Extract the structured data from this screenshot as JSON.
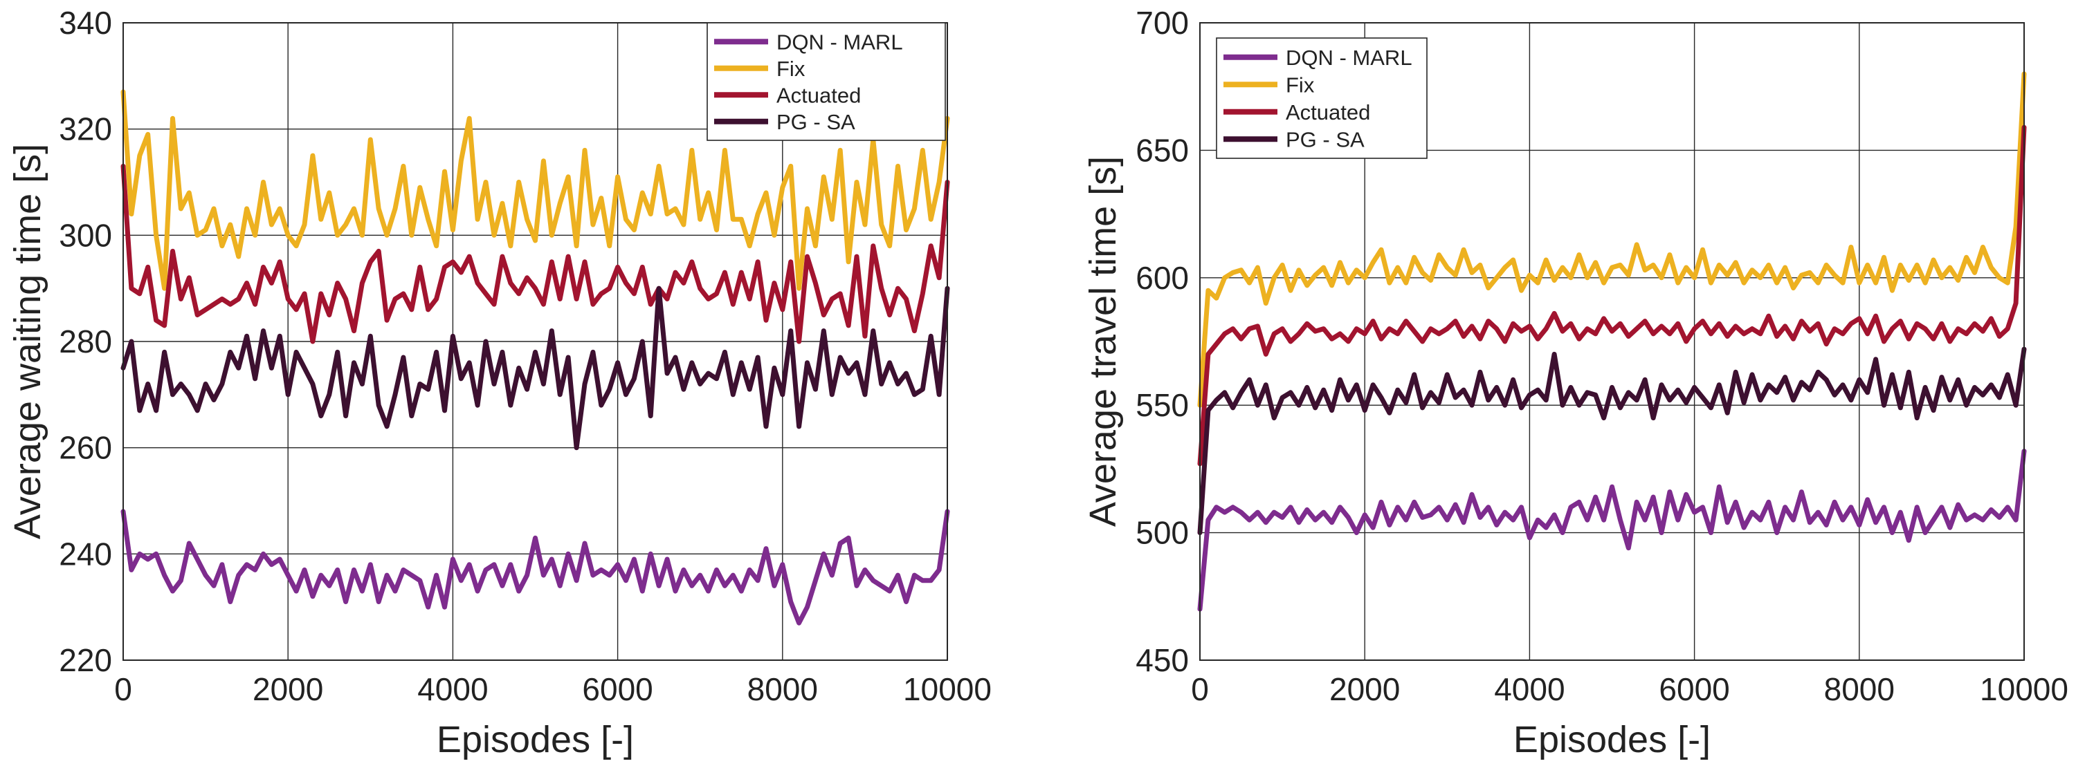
{
  "colors": {
    "dqn_marl": "#7E2C8E",
    "fix": "#EDB120",
    "actuated": "#A2142F",
    "pg_sa": "#3D1030"
  },
  "chart_data": [
    {
      "type": "line",
      "xlabel": "Episodes [-]",
      "ylabel": "Average waiting time [s]",
      "xlim": [
        0,
        10000
      ],
      "ylim": [
        220,
        340
      ],
      "xticks": [
        0,
        2000,
        4000,
        6000,
        8000,
        10000
      ],
      "yticks": [
        220,
        240,
        260,
        280,
        300,
        320,
        340
      ],
      "grid": true,
      "legend_position": "top-right",
      "x": [
        0,
        100,
        200,
        300,
        400,
        500,
        600,
        700,
        800,
        900,
        1000,
        1100,
        1200,
        1300,
        1400,
        1500,
        1600,
        1700,
        1800,
        1900,
        2000,
        2100,
        2200,
        2300,
        2400,
        2500,
        2600,
        2700,
        2800,
        2900,
        3000,
        3100,
        3200,
        3300,
        3400,
        3500,
        3600,
        3700,
        3800,
        3900,
        4000,
        4100,
        4200,
        4300,
        4400,
        4500,
        4600,
        4700,
        4800,
        4900,
        5000,
        5100,
        5200,
        5300,
        5400,
        5500,
        5600,
        5700,
        5800,
        5900,
        6000,
        6100,
        6200,
        6300,
        6400,
        6500,
        6600,
        6700,
        6800,
        6900,
        7000,
        7100,
        7200,
        7300,
        7400,
        7500,
        7600,
        7700,
        7800,
        7900,
        8000,
        8100,
        8200,
        8300,
        8400,
        8500,
        8600,
        8700,
        8800,
        8900,
        9000,
        9100,
        9200,
        9300,
        9400,
        9500,
        9600,
        9700,
        9800,
        9900,
        10000
      ],
      "series": [
        {
          "name": "DQN - MARL",
          "color_key": "dqn_marl",
          "values": [
            248,
            237,
            240,
            239,
            240,
            236,
            233,
            235,
            242,
            239,
            236,
            234,
            238,
            231,
            236,
            238,
            237,
            240,
            238,
            239,
            236,
            233,
            237,
            232,
            236,
            234,
            237,
            231,
            237,
            233,
            238,
            231,
            236,
            233,
            237,
            236,
            235,
            230,
            236,
            230,
            239,
            235,
            238,
            233,
            237,
            238,
            234,
            238,
            233,
            236,
            243,
            236,
            239,
            234,
            240,
            235,
            242,
            236,
            237,
            236,
            238,
            235,
            239,
            233,
            240,
            234,
            239,
            233,
            237,
            234,
            236,
            233,
            237,
            234,
            236,
            233,
            237,
            235,
            241,
            234,
            238,
            231,
            227,
            230,
            235,
            240,
            236,
            242,
            243,
            234,
            237,
            235,
            234,
            233,
            236,
            231,
            236,
            235,
            235,
            237,
            248
          ]
        },
        {
          "name": "Fix",
          "color_key": "fix",
          "values": [
            327,
            304,
            315,
            319,
            300,
            290,
            322,
            305,
            308,
            300,
            301,
            305,
            298,
            302,
            296,
            305,
            300,
            310,
            302,
            305,
            300,
            298,
            302,
            315,
            303,
            308,
            300,
            302,
            305,
            300,
            318,
            305,
            300,
            305,
            313,
            300,
            309,
            303,
            298,
            312,
            301,
            314,
            322,
            303,
            310,
            300,
            306,
            298,
            310,
            303,
            299,
            314,
            300,
            306,
            311,
            298,
            316,
            302,
            307,
            298,
            311,
            303,
            301,
            308,
            304,
            313,
            304,
            305,
            302,
            316,
            303,
            308,
            301,
            316,
            303,
            303,
            298,
            304,
            308,
            300,
            309,
            313,
            290,
            305,
            298,
            311,
            303,
            316,
            295,
            310,
            302,
            318,
            302,
            298,
            313,
            301,
            305,
            316,
            303,
            310,
            322
          ]
        },
        {
          "name": "Actuated",
          "color_key": "actuated",
          "values": [
            313,
            290,
            289,
            294,
            284,
            283,
            297,
            288,
            292,
            285,
            286,
            287,
            288,
            287,
            288,
            291,
            287,
            294,
            291,
            295,
            288,
            286,
            289,
            280,
            289,
            285,
            291,
            288,
            282,
            291,
            295,
            297,
            284,
            288,
            289,
            286,
            294,
            286,
            288,
            294,
            295,
            293,
            296,
            291,
            289,
            287,
            296,
            291,
            289,
            292,
            290,
            287,
            295,
            288,
            296,
            288,
            295,
            287,
            289,
            290,
            294,
            291,
            289,
            294,
            287,
            290,
            288,
            293,
            291,
            295,
            290,
            288,
            289,
            293,
            287,
            293,
            288,
            295,
            284,
            291,
            286,
            295,
            280,
            296,
            291,
            285,
            288,
            289,
            283,
            296,
            281,
            298,
            290,
            285,
            290,
            288,
            282,
            289,
            298,
            292,
            310
          ]
        },
        {
          "name": "PG - SA",
          "color_key": "pg_sa",
          "values": [
            275,
            280,
            267,
            272,
            267,
            278,
            270,
            272,
            270,
            267,
            272,
            269,
            272,
            278,
            275,
            281,
            273,
            282,
            275,
            281,
            270,
            278,
            275,
            272,
            266,
            270,
            278,
            266,
            276,
            272,
            281,
            268,
            264,
            270,
            277,
            266,
            272,
            271,
            278,
            267,
            281,
            273,
            276,
            268,
            280,
            272,
            278,
            268,
            275,
            271,
            278,
            272,
            282,
            270,
            277,
            260,
            272,
            278,
            268,
            271,
            276,
            270,
            273,
            280,
            266,
            290,
            274,
            277,
            271,
            276,
            272,
            274,
            273,
            278,
            270,
            276,
            271,
            277,
            264,
            275,
            270,
            282,
            264,
            276,
            271,
            282,
            270,
            277,
            274,
            276,
            270,
            282,
            272,
            276,
            272,
            274,
            270,
            271,
            281,
            270,
            290
          ]
        }
      ]
    },
    {
      "type": "line",
      "xlabel": "Episodes [-]",
      "ylabel": "Average travel time [s]",
      "xlim": [
        0,
        10000
      ],
      "ylim": [
        450,
        700
      ],
      "xticks": [
        0,
        2000,
        4000,
        6000,
        8000,
        10000
      ],
      "yticks": [
        450,
        500,
        550,
        600,
        650,
        700
      ],
      "grid": true,
      "legend_position": "top-left",
      "x": [
        0,
        100,
        200,
        300,
        400,
        500,
        600,
        700,
        800,
        900,
        1000,
        1100,
        1200,
        1300,
        1400,
        1500,
        1600,
        1700,
        1800,
        1900,
        2000,
        2100,
        2200,
        2300,
        2400,
        2500,
        2600,
        2700,
        2800,
        2900,
        3000,
        3100,
        3200,
        3300,
        3400,
        3500,
        3600,
        3700,
        3800,
        3900,
        4000,
        4100,
        4200,
        4300,
        4400,
        4500,
        4600,
        4700,
        4800,
        4900,
        5000,
        5100,
        5200,
        5300,
        5400,
        5500,
        5600,
        5700,
        5800,
        5900,
        6000,
        6100,
        6200,
        6300,
        6400,
        6500,
        6600,
        6700,
        6800,
        6900,
        7000,
        7100,
        7200,
        7300,
        7400,
        7500,
        7600,
        7700,
        7800,
        7900,
        8000,
        8100,
        8200,
        8300,
        8400,
        8500,
        8600,
        8700,
        8800,
        8900,
        9000,
        9100,
        9200,
        9300,
        9400,
        9500,
        9600,
        9700,
        9800,
        9900,
        10000
      ],
      "series": [
        {
          "name": "DQN - MARL",
          "color_key": "dqn_marl",
          "values": [
            470,
            505,
            510,
            508,
            510,
            508,
            505,
            508,
            504,
            508,
            506,
            510,
            504,
            509,
            505,
            508,
            504,
            510,
            506,
            500,
            507,
            502,
            512,
            503,
            510,
            505,
            512,
            506,
            507,
            510,
            505,
            511,
            504,
            515,
            506,
            510,
            503,
            508,
            505,
            510,
            498,
            505,
            502,
            507,
            500,
            510,
            512,
            505,
            514,
            505,
            518,
            505,
            494,
            512,
            505,
            514,
            500,
            516,
            505,
            515,
            508,
            510,
            500,
            518,
            504,
            512,
            502,
            508,
            505,
            512,
            500,
            510,
            505,
            516,
            504,
            508,
            503,
            512,
            505,
            510,
            503,
            513,
            504,
            510,
            500,
            508,
            497,
            510,
            500,
            505,
            510,
            502,
            511,
            505,
            507,
            505,
            509,
            506,
            510,
            505,
            532
          ]
        },
        {
          "name": "Fix",
          "color_key": "fix",
          "values": [
            550,
            595,
            592,
            600,
            602,
            603,
            598,
            604,
            590,
            600,
            605,
            595,
            603,
            597,
            601,
            604,
            597,
            606,
            598,
            603,
            600,
            606,
            611,
            598,
            604,
            598,
            608,
            602,
            599,
            609,
            604,
            601,
            611,
            602,
            605,
            596,
            600,
            604,
            607,
            595,
            601,
            598,
            607,
            599,
            604,
            600,
            609,
            600,
            606,
            598,
            604,
            605,
            601,
            613,
            603,
            605,
            600,
            609,
            598,
            604,
            600,
            611,
            598,
            605,
            601,
            606,
            598,
            603,
            600,
            605,
            598,
            604,
            596,
            601,
            602,
            598,
            605,
            601,
            598,
            612,
            598,
            605,
            598,
            608,
            595,
            605,
            599,
            605,
            598,
            607,
            600,
            604,
            599,
            608,
            602,
            612,
            604,
            600,
            598,
            620,
            680
          ]
        },
        {
          "name": "Actuated",
          "color_key": "actuated",
          "values": [
            527,
            570,
            574,
            578,
            580,
            576,
            580,
            581,
            570,
            578,
            580,
            575,
            578,
            582,
            579,
            580,
            576,
            578,
            575,
            580,
            578,
            583,
            576,
            580,
            578,
            583,
            579,
            575,
            580,
            578,
            580,
            583,
            577,
            581,
            576,
            583,
            580,
            575,
            582,
            579,
            581,
            576,
            580,
            586,
            579,
            582,
            576,
            580,
            578,
            584,
            579,
            582,
            577,
            580,
            583,
            578,
            581,
            578,
            582,
            575,
            580,
            583,
            578,
            582,
            577,
            581,
            578,
            580,
            578,
            585,
            577,
            581,
            576,
            583,
            579,
            582,
            574,
            580,
            578,
            582,
            584,
            578,
            585,
            575,
            580,
            583,
            576,
            582,
            580,
            576,
            582,
            575,
            580,
            578,
            582,
            579,
            584,
            577,
            580,
            590,
            659
          ]
        },
        {
          "name": "PG - SA",
          "color_key": "pg_sa",
          "values": [
            500,
            548,
            552,
            555,
            549,
            555,
            560,
            550,
            558,
            545,
            553,
            555,
            550,
            557,
            549,
            556,
            548,
            560,
            552,
            558,
            548,
            558,
            553,
            547,
            556,
            551,
            562,
            549,
            555,
            551,
            562,
            553,
            556,
            550,
            563,
            552,
            557,
            550,
            560,
            549,
            554,
            556,
            552,
            570,
            550,
            557,
            550,
            555,
            554,
            545,
            557,
            549,
            555,
            552,
            560,
            545,
            558,
            552,
            556,
            551,
            557,
            553,
            549,
            558,
            547,
            563,
            551,
            562,
            552,
            558,
            555,
            561,
            552,
            559,
            556,
            563,
            560,
            554,
            558,
            552,
            560,
            555,
            568,
            550,
            562,
            549,
            563,
            545,
            557,
            548,
            561,
            552,
            560,
            550,
            557,
            554,
            558,
            553,
            562,
            550,
            572
          ]
        }
      ]
    }
  ]
}
